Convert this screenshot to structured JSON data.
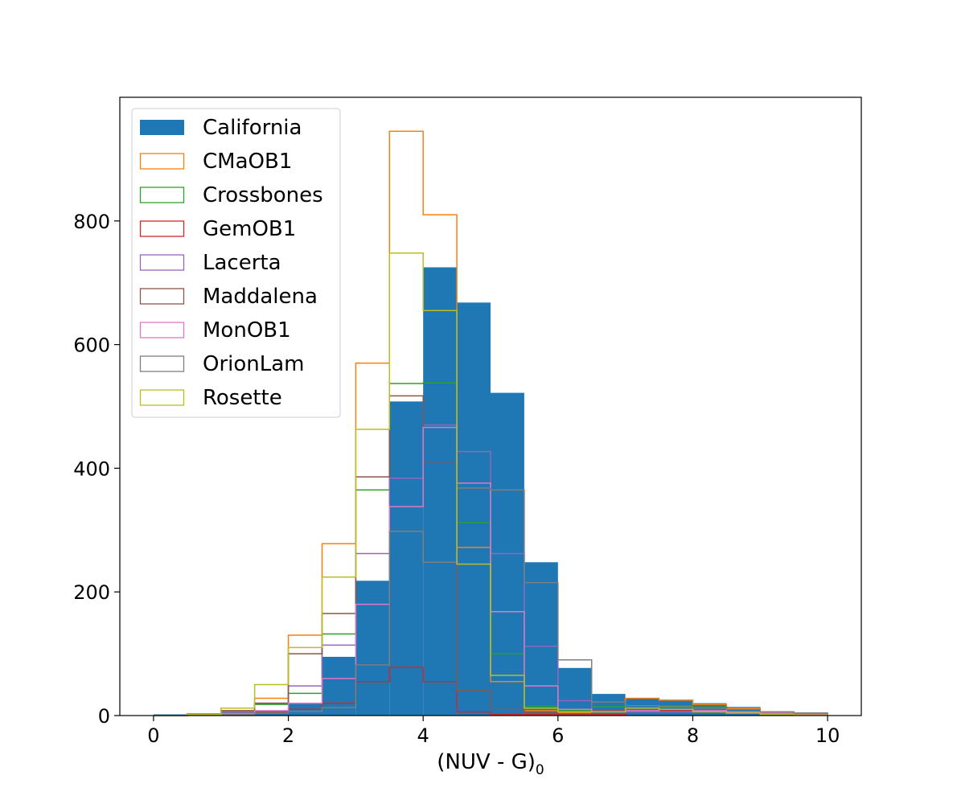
{
  "chart_data": {
    "type": "histogram",
    "xlabel": "(NUV - G)",
    "xlabel_subscript": "0",
    "ylabel": "",
    "xlim": [
      -0.5,
      10.5
    ],
    "ylim": [
      0,
      1000
    ],
    "xticks": [
      0,
      2,
      4,
      6,
      8,
      10
    ],
    "yticks": [
      0,
      200,
      400,
      600,
      800
    ],
    "bin_edges": [
      0,
      0.5,
      1,
      1.5,
      2,
      2.5,
      3,
      3.5,
      4,
      4.5,
      5,
      5.5,
      6,
      6.5,
      7,
      7.5,
      8,
      8.5,
      9,
      9.5,
      10
    ],
    "legend_position": "upper left",
    "series": [
      {
        "name": "California",
        "style": "filled",
        "color": "#1f77b4",
        "values": [
          2,
          3,
          5,
          8,
          20,
          95,
          218,
          508,
          725,
          668,
          522,
          248,
          77,
          35,
          28,
          24,
          20,
          14,
          6,
          5
        ]
      },
      {
        "name": "CMaOB1",
        "style": "step",
        "color": "#ff7f0e",
        "values": [
          0,
          3,
          8,
          28,
          130,
          278,
          570,
          945,
          810,
          272,
          55,
          8,
          4,
          8,
          28,
          25,
          18,
          12,
          6,
          3
        ]
      },
      {
        "name": "Crossbones",
        "style": "step",
        "color": "#2ca02c",
        "values": [
          0,
          2,
          6,
          18,
          36,
          132,
          365,
          537,
          538,
          312,
          100,
          15,
          8,
          14,
          16,
          16,
          14,
          10,
          5,
          3
        ]
      },
      {
        "name": "GemOB1",
        "style": "step",
        "color": "#d62728",
        "values": [
          0,
          1,
          2,
          5,
          10,
          20,
          55,
          78,
          55,
          6,
          2,
          2,
          1,
          2,
          6,
          8,
          6,
          4,
          2,
          1
        ]
      },
      {
        "name": "Lacerta",
        "style": "step",
        "color": "#9467bd",
        "values": [
          0,
          2,
          5,
          20,
          48,
          114,
          262,
          384,
          470,
          427,
          262,
          112,
          24,
          8,
          6,
          6,
          6,
          5,
          3,
          2
        ]
      },
      {
        "name": "Maddalena",
        "style": "step",
        "color": "#8c564b",
        "values": [
          0,
          2,
          8,
          20,
          100,
          165,
          386,
          517,
          408,
          40,
          10,
          5,
          3,
          8,
          12,
          14,
          13,
          10,
          5,
          3
        ]
      },
      {
        "name": "MonOB1",
        "style": "step",
        "color": "#e377c2",
        "values": [
          0,
          1,
          3,
          8,
          20,
          60,
          180,
          338,
          466,
          376,
          168,
          48,
          10,
          6,
          8,
          10,
          8,
          6,
          4,
          2
        ]
      },
      {
        "name": "OrionLam",
        "style": "step",
        "color": "#7f7f7f",
        "values": [
          0,
          1,
          2,
          4,
          7,
          13,
          82,
          298,
          248,
          368,
          365,
          215,
          90,
          22,
          16,
          14,
          12,
          10,
          6,
          4
        ]
      },
      {
        "name": "Rosette",
        "style": "step",
        "color": "#bcbd22",
        "values": [
          0,
          2,
          12,
          50,
          110,
          224,
          463,
          748,
          655,
          245,
          65,
          12,
          6,
          6,
          12,
          10,
          6,
          4,
          2,
          1
        ]
      }
    ]
  }
}
